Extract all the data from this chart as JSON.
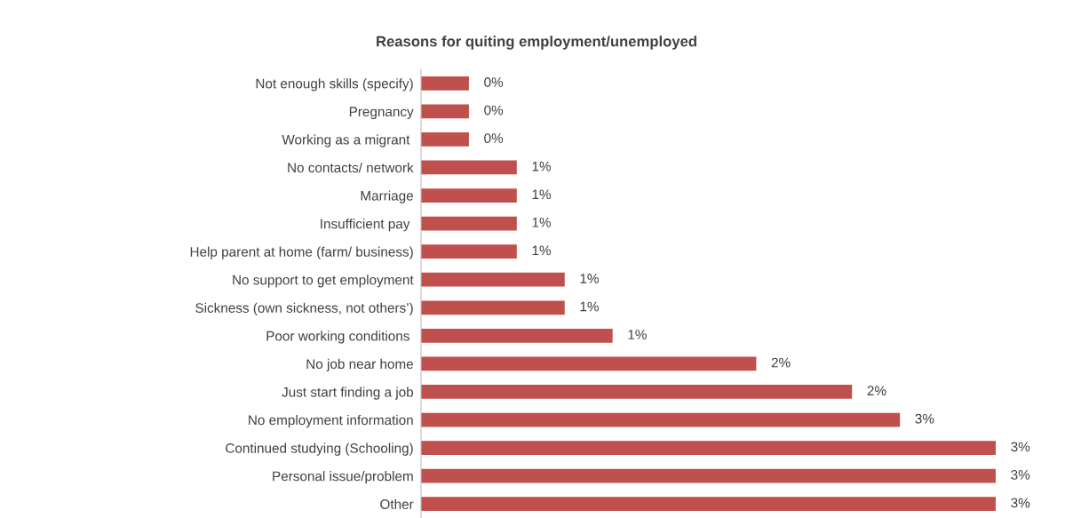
{
  "chart_data": {
    "type": "bar",
    "orientation": "horizontal",
    "xlim": [
      0,
      3
    ],
    "tick_labels": "y",
    "title": "Reasons for quiting employment/unemployed",
    "categories": [
      "Not enough skills (specify)",
      "Pregnancy",
      "Working as a migrant ",
      "No contacts/ network",
      "Marriage",
      "Insufficient pay ",
      "Help parent at home (farm/ business)",
      "No support to get employment",
      "Sickness (own sickness, not others’)",
      "Poor working conditions ",
      "No job near home",
      "Just start finding a job",
      "No employment information",
      "Continued studying (Schooling)",
      "Personal issue/problem",
      "Other"
    ],
    "values": [
      0.25,
      0.25,
      0.25,
      0.5,
      0.5,
      0.5,
      0.5,
      0.75,
      0.75,
      1,
      1.75,
      2.25,
      2.5,
      3,
      3,
      3
    ],
    "value_labels": [
      "0%",
      "0%",
      "0%",
      "1%",
      "1%",
      "1%",
      "1%",
      "1%",
      "1%",
      "1%",
      "2%",
      "2%",
      "3%",
      "3%",
      "3%",
      "3%"
    ],
    "color": "#c0504d",
    "grid": false,
    "legend": false
  }
}
